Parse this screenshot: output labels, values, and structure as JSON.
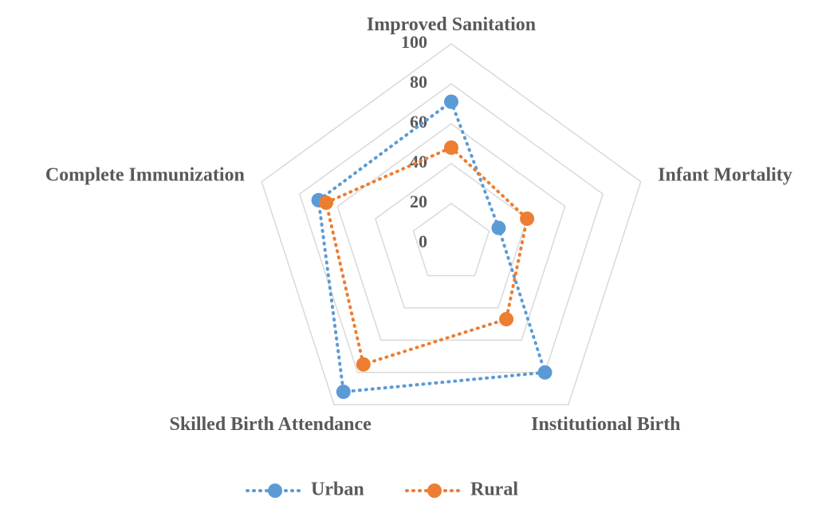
{
  "chart_data": {
    "type": "radar",
    "categories": [
      "Improved Sanitation",
      "Infant Mortality",
      "Institutional Birth",
      "Skilled Birth Attendance",
      "Complete Immunization"
    ],
    "series": [
      {
        "name": "Urban",
        "color": "#5b9bd5",
        "values": [
          71,
          25,
          80,
          92,
          70
        ]
      },
      {
        "name": "Rural",
        "color": "#ed7d31",
        "values": [
          48,
          40,
          47,
          75,
          66
        ]
      }
    ],
    "ylim": [
      0,
      100
    ],
    "yticks": [
      0,
      20,
      40,
      60,
      80,
      100
    ],
    "grid": true,
    "legend": "bottom"
  }
}
